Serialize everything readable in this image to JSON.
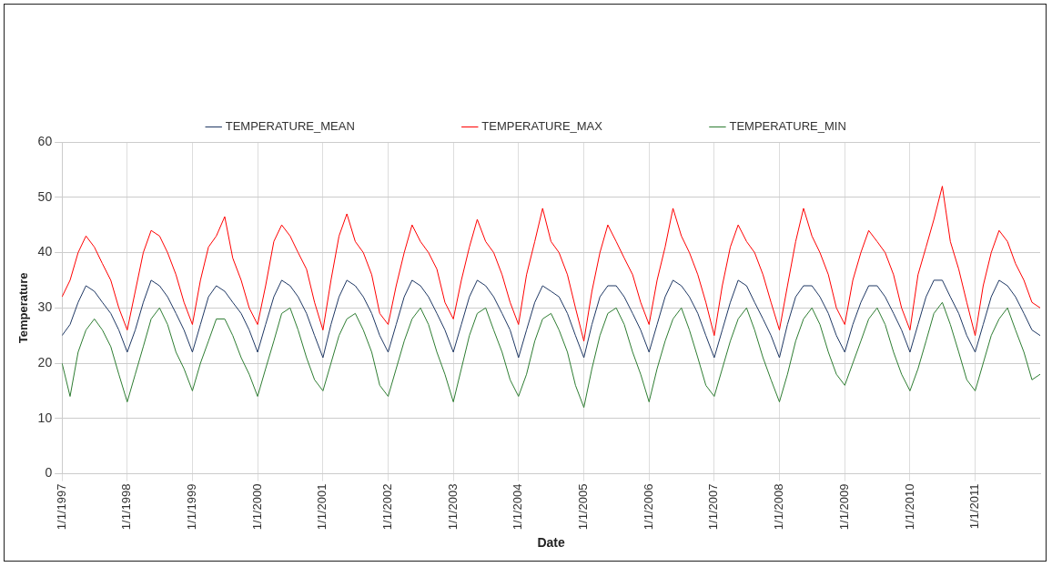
{
  "chart_data": {
    "type": "line",
    "xlabel": "Date",
    "ylabel": "Temperature",
    "x": [
      "1997-01-01",
      "1997-02-15",
      "1997-04-01",
      "1997-05-15",
      "1997-07-01",
      "1997-08-15",
      "1997-10-01",
      "1997-11-15",
      "1998-01-01",
      "1998-02-15",
      "1998-04-01",
      "1998-05-15",
      "1998-07-01",
      "1998-08-15",
      "1998-10-01",
      "1998-11-15",
      "1999-01-01",
      "1999-02-15",
      "1999-04-01",
      "1999-05-15",
      "1999-07-01",
      "1999-08-15",
      "1999-10-01",
      "1999-11-15",
      "2000-01-01",
      "2000-02-15",
      "2000-04-01",
      "2000-05-15",
      "2000-07-01",
      "2000-08-15",
      "2000-10-01",
      "2000-11-15",
      "2001-01-01",
      "2001-02-15",
      "2001-04-01",
      "2001-05-15",
      "2001-07-01",
      "2001-08-15",
      "2001-10-01",
      "2001-11-15",
      "2002-01-01",
      "2002-02-15",
      "2002-04-01",
      "2002-05-15",
      "2002-07-01",
      "2002-08-15",
      "2002-10-01",
      "2002-11-15",
      "2003-01-01",
      "2003-02-15",
      "2003-04-01",
      "2003-05-15",
      "2003-07-01",
      "2003-08-15",
      "2003-10-01",
      "2003-11-15",
      "2004-01-01",
      "2004-02-15",
      "2004-04-01",
      "2004-05-15",
      "2004-07-01",
      "2004-08-15",
      "2004-10-01",
      "2004-11-15",
      "2005-01-01",
      "2005-02-15",
      "2005-04-01",
      "2005-05-15",
      "2005-07-01",
      "2005-08-15",
      "2005-10-01",
      "2005-11-15",
      "2006-01-01",
      "2006-02-15",
      "2006-04-01",
      "2006-05-15",
      "2006-07-01",
      "2006-08-15",
      "2006-10-01",
      "2006-11-15",
      "2007-01-01",
      "2007-02-15",
      "2007-04-01",
      "2007-05-15",
      "2007-07-01",
      "2007-08-15",
      "2007-10-01",
      "2007-11-15",
      "2008-01-01",
      "2008-02-15",
      "2008-04-01",
      "2008-05-15",
      "2008-07-01",
      "2008-08-15",
      "2008-10-01",
      "2008-11-15",
      "2009-01-01",
      "2009-02-15",
      "2009-04-01",
      "2009-05-15",
      "2009-07-01",
      "2009-08-15",
      "2009-10-01",
      "2009-11-15",
      "2010-01-01",
      "2010-02-15",
      "2010-04-01",
      "2010-05-15",
      "2010-07-01",
      "2010-08-15",
      "2010-10-01",
      "2010-11-15",
      "2011-01-01",
      "2011-02-15",
      "2011-04-01",
      "2011-05-15",
      "2011-07-01",
      "2011-08-15",
      "2011-10-01",
      "2011-11-15",
      "2011-12-31"
    ],
    "series": [
      {
        "name": "TEMPERATURE_MEAN",
        "color": "#1f3864",
        "values": [
          25,
          27,
          31,
          34,
          33,
          31,
          29,
          26,
          22,
          26,
          31,
          35,
          34,
          32,
          29,
          26,
          22,
          27,
          32,
          34,
          33,
          31,
          29,
          26,
          22,
          27,
          32,
          35,
          34,
          32,
          29,
          25,
          21,
          27,
          32,
          35,
          34,
          32,
          29,
          25,
          22,
          27,
          32,
          35,
          34,
          32,
          29,
          26,
          22,
          27,
          32,
          35,
          34,
          32,
          29,
          26,
          21,
          26,
          31,
          34,
          33,
          32,
          29,
          25,
          21,
          27,
          32,
          34,
          34,
          32,
          29,
          26,
          22,
          27,
          32,
          35,
          34,
          32,
          29,
          25,
          21,
          26,
          31,
          35,
          34,
          31,
          28,
          25,
          21,
          27,
          32,
          34,
          34,
          32,
          29,
          25,
          22,
          27,
          31,
          34,
          34,
          32,
          29,
          26,
          22,
          27,
          32,
          35,
          35,
          32,
          29,
          25,
          22,
          27,
          32,
          35,
          34,
          32,
          29,
          26,
          25
        ]
      },
      {
        "name": "TEMPERATURE_MAX",
        "color": "#ff0000",
        "values": [
          32,
          35,
          40,
          43,
          41,
          38,
          35,
          30,
          26,
          33,
          40,
          44,
          43,
          40,
          36,
          31,
          27,
          35,
          41,
          43,
          46.5,
          39,
          35,
          30,
          27,
          34,
          42,
          45,
          43,
          40,
          37,
          31,
          26,
          35,
          43,
          47,
          42,
          40,
          36,
          29,
          27,
          34,
          40,
          45,
          42,
          40,
          37,
          31,
          28,
          35,
          41,
          46,
          42,
          40,
          36,
          31,
          27,
          36,
          42,
          48,
          42,
          40,
          36,
          30,
          24,
          33,
          40,
          45,
          42,
          39,
          36,
          31,
          27,
          35,
          41,
          48,
          43,
          40,
          36,
          31,
          25,
          34,
          41,
          45,
          42,
          40,
          36,
          31,
          26,
          34,
          42,
          48,
          43,
          40,
          36,
          30,
          27,
          35,
          40,
          44,
          42,
          40,
          36,
          30,
          26,
          36,
          41,
          46,
          52,
          42,
          37,
          31,
          25,
          34,
          40,
          44,
          42,
          38,
          35,
          31,
          30
        ]
      },
      {
        "name": "TEMPERATURE_MIN",
        "color": "#2e7d32",
        "values": [
          20,
          14,
          22,
          26,
          28,
          26,
          23,
          18,
          13,
          18,
          23,
          28,
          30,
          27,
          22,
          19,
          15,
          20,
          24,
          28,
          28,
          25,
          21,
          18,
          14,
          19,
          24,
          29,
          30,
          26,
          21,
          17,
          15,
          20,
          25,
          28,
          29,
          26,
          22,
          16,
          14,
          19,
          24,
          28,
          30,
          27,
          22,
          18,
          13,
          19,
          25,
          29,
          30,
          26,
          22,
          17,
          14,
          18,
          24,
          28,
          29,
          26,
          22,
          16,
          12,
          19,
          25,
          29,
          30,
          27,
          22,
          18,
          13,
          19,
          24,
          28,
          30,
          26,
          21,
          16,
          14,
          19,
          24,
          28,
          30,
          26,
          21,
          17,
          13,
          18,
          24,
          28,
          30,
          27,
          22,
          18,
          16,
          20,
          24,
          28,
          30,
          27,
          22,
          18,
          15,
          19,
          24,
          29,
          31,
          27,
          22,
          17,
          15,
          20,
          25,
          28,
          30,
          26,
          22,
          17,
          18
        ]
      }
    ],
    "xlim": [
      "1997-01-01",
      "2011-12-31"
    ],
    "xticks": [
      {
        "value": "1997-01-01",
        "label": "1/1/1997"
      },
      {
        "value": "1998-01-01",
        "label": "1/1/1998"
      },
      {
        "value": "1999-01-01",
        "label": "1/1/1999"
      },
      {
        "value": "2000-01-01",
        "label": "1/1/2000"
      },
      {
        "value": "2001-01-01",
        "label": "1/1/2001"
      },
      {
        "value": "2002-01-01",
        "label": "1/1/2002"
      },
      {
        "value": "2003-01-01",
        "label": "1/1/2003"
      },
      {
        "value": "2004-01-01",
        "label": "1/1/2004"
      },
      {
        "value": "2005-01-01",
        "label": "1/1/2005"
      },
      {
        "value": "2006-01-01",
        "label": "1/1/2006"
      },
      {
        "value": "2007-01-01",
        "label": "1/1/2007"
      },
      {
        "value": "2008-01-01",
        "label": "1/1/2008"
      },
      {
        "value": "2009-01-01",
        "label": "1/1/2009"
      },
      {
        "value": "2010-01-01",
        "label": "1/1/2010"
      },
      {
        "value": "2011-01-01",
        "label": "1/1/2011"
      }
    ],
    "ylim": [
      0,
      60
    ],
    "yticks": [
      0,
      10,
      20,
      30,
      40,
      50,
      60
    ],
    "grid": true,
    "legend": "top",
    "marker": "none",
    "line_style": "solid"
  }
}
